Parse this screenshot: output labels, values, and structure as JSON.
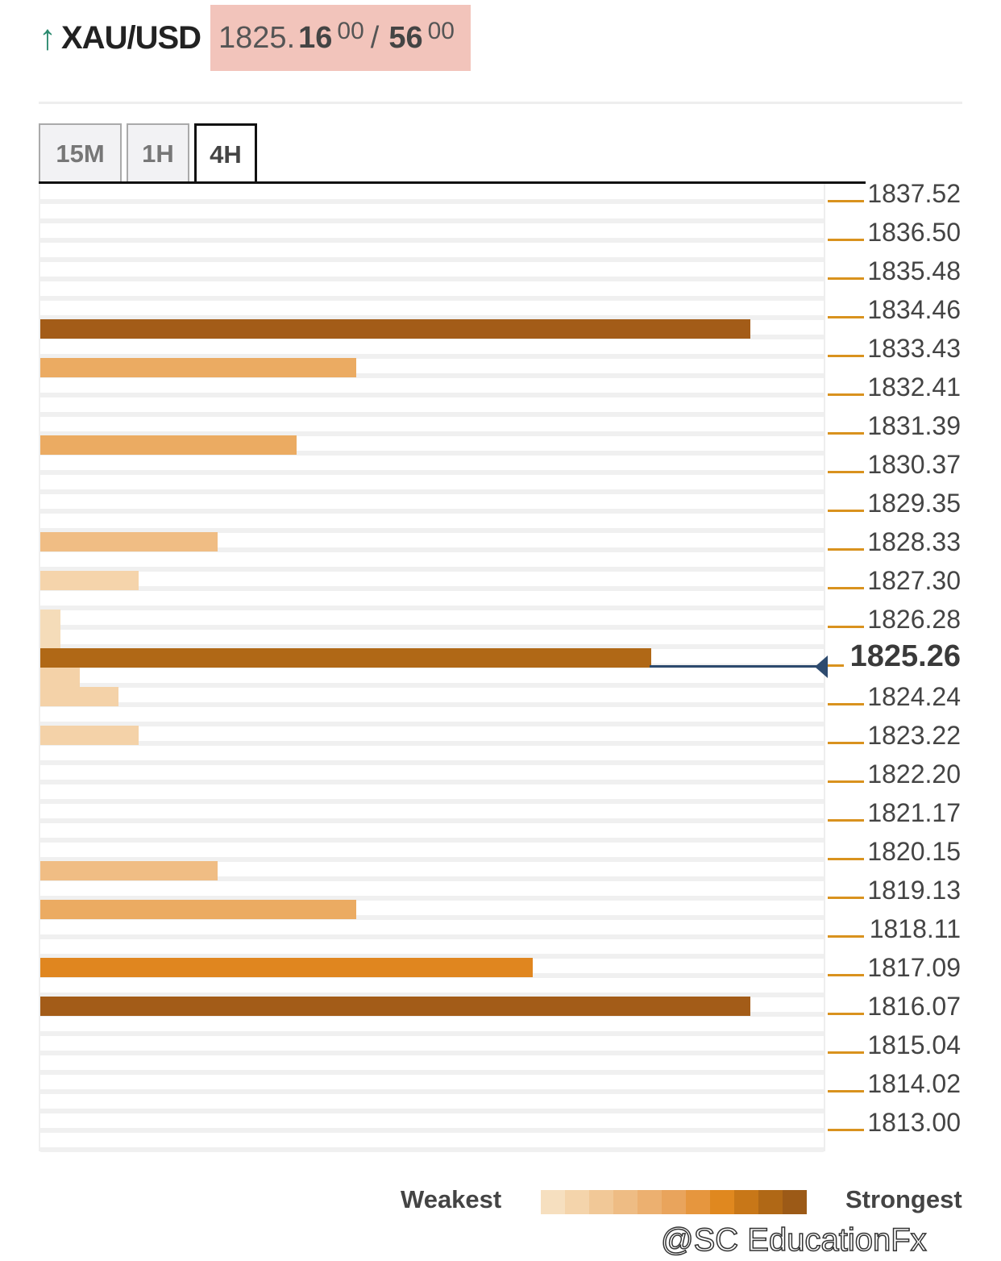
{
  "header": {
    "direction_icon": "arrow-up-icon",
    "symbol": "XAU/USD",
    "bid_prefix": "1825.",
    "bid_main": "16",
    "bid_sup": "00",
    "separator": "/",
    "ask_main": "56",
    "ask_sup": "00"
  },
  "tabs": [
    {
      "label": "15M",
      "active": false
    },
    {
      "label": "1H",
      "active": false
    },
    {
      "label": "4H",
      "active": true
    }
  ],
  "chart_data": {
    "type": "bar",
    "orientation": "horizontal",
    "title": "",
    "price_step": 0.5104,
    "top_price": 1837.52,
    "row_count": 50,
    "ylabels": [
      "1837.52",
      "1836.50",
      "1835.48",
      "1834.46",
      "1833.43",
      "1832.41",
      "1831.39",
      "1830.37",
      "1829.35",
      "1828.33",
      "1827.30",
      "1826.28",
      "1825.26",
      "1824.24",
      "1823.22",
      "1822.20",
      "1821.17",
      "1820.15",
      "1819.13",
      "1818.11",
      "1817.09",
      "1816.07",
      "1815.04",
      "1814.02",
      "1813.00"
    ],
    "current_price": "1825.26",
    "xlim": [
      0,
      100
    ],
    "bars": [
      {
        "price": 1833.95,
        "value": 90.6,
        "color": "#a35c18"
      },
      {
        "price": 1832.93,
        "value": 40.3,
        "color": "#ebab62"
      },
      {
        "price": 1830.89,
        "value": 32.7,
        "color": "#ebab62"
      },
      {
        "price": 1828.33,
        "value": 22.6,
        "color": "#f0bd84"
      },
      {
        "price": 1827.3,
        "value": 12.6,
        "color": "#f5d4ab"
      },
      {
        "price": 1826.28,
        "value": 2.6,
        "color": "#f5dcb9"
      },
      {
        "price": 1825.77,
        "value": 2.6,
        "color": "#f5dcb9"
      },
      {
        "price": 1825.26,
        "value": 78.0,
        "color": "#b06816"
      },
      {
        "price": 1824.75,
        "value": 5.0,
        "color": "#f4d2a8"
      },
      {
        "price": 1824.24,
        "value": 10.0,
        "color": "#f4d2a8"
      },
      {
        "price": 1823.22,
        "value": 12.6,
        "color": "#f4d2a8"
      },
      {
        "price": 1819.65,
        "value": 22.6,
        "color": "#f0bd84"
      },
      {
        "price": 1818.63,
        "value": 40.3,
        "color": "#ebab62"
      },
      {
        "price": 1817.09,
        "value": 62.9,
        "color": "#e0861f"
      },
      {
        "price": 1816.07,
        "value": 90.6,
        "color": "#a35c18"
      }
    ]
  },
  "legend": {
    "weakest": "Weakest",
    "strongest": "Strongest",
    "scale_colors": [
      "#f6dfbf",
      "#f4d4ab",
      "#f1c897",
      "#eebc84",
      "#ecb070",
      "#e9a45c",
      "#e6963e",
      "#e0881f",
      "#c87718",
      "#b06816",
      "#9c5a17"
    ]
  },
  "watermark": "@SC EducationFx"
}
